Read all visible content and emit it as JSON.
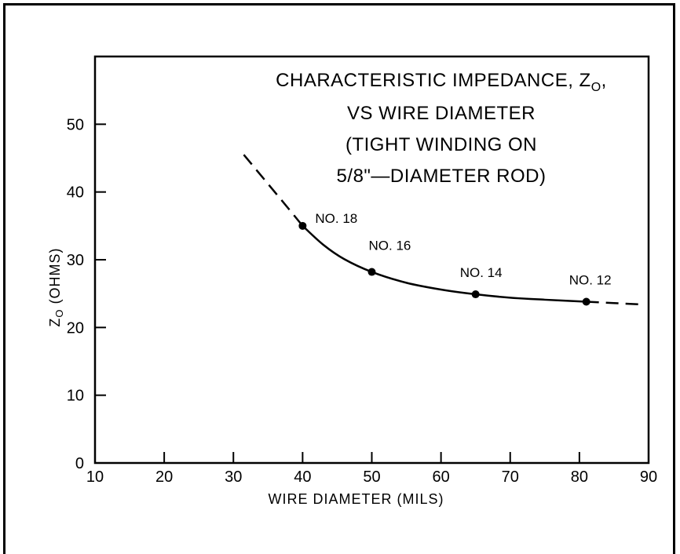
{
  "chart_data": {
    "type": "line",
    "title_lines": [
      "CHARACTERISTIC IMPEDANCE, Z",
      "VS WIRE DIAMETER",
      "(TIGHT WINDING ON",
      "5/8\"—DIAMETER ROD)"
    ],
    "title_subscript": "O",
    "title_suffix": ",",
    "xlabel": "WIRE DIAMETER (MILS)",
    "ylabel_main": "Z",
    "ylabel_sub": "O",
    "ylabel_rest": " (OHMS)",
    "xlim": [
      10,
      90
    ],
    "ylim": [
      0,
      60
    ],
    "x_ticks": [
      10,
      20,
      30,
      40,
      50,
      60,
      70,
      80,
      90
    ],
    "y_ticks": [
      0,
      10,
      20,
      30,
      40,
      50
    ],
    "points": [
      {
        "label": "NO. 18",
        "x": 40,
        "y": 35
      },
      {
        "label": "NO. 16",
        "x": 50,
        "y": 28.2
      },
      {
        "label": "NO. 14",
        "x": 65,
        "y": 24.9
      },
      {
        "label": "NO. 12",
        "x": 81,
        "y": 23.8
      }
    ],
    "curve_dashed_left": [
      [
        31.5,
        45.5
      ],
      [
        35,
        41.2
      ],
      [
        38,
        37.5
      ],
      [
        40,
        35
      ]
    ],
    "curve_solid": [
      [
        40,
        35
      ],
      [
        43,
        32.2
      ],
      [
        46,
        30.1
      ],
      [
        50,
        28.2
      ],
      [
        55,
        26.6
      ],
      [
        60,
        25.6
      ],
      [
        65,
        24.9
      ],
      [
        70,
        24.4
      ],
      [
        75,
        24.1
      ],
      [
        81,
        23.8
      ]
    ],
    "curve_dashed_right": [
      [
        81,
        23.8
      ],
      [
        85,
        23.6
      ],
      [
        89,
        23.4
      ]
    ],
    "grid": false,
    "line_color": "#000000"
  }
}
